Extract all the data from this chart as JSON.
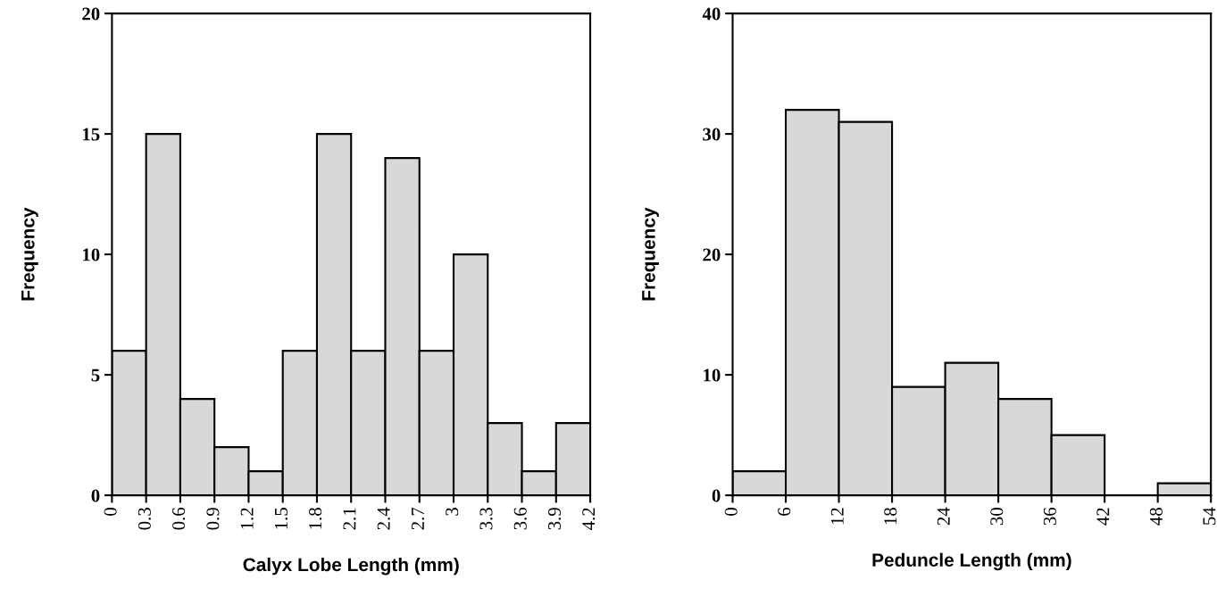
{
  "chart_data": [
    {
      "type": "histogram",
      "xlabel": "Calyx Lobe Length (mm)",
      "ylabel": "Frequency",
      "bins": [
        0,
        0.3,
        0.6,
        0.9,
        1.2,
        1.5,
        1.8,
        2.1,
        2.4,
        2.7,
        3,
        3.3,
        3.6,
        3.9,
        4.2
      ],
      "values": [
        6,
        15,
        4,
        2,
        1,
        6,
        15,
        6,
        14,
        6,
        10,
        3,
        1,
        3
      ],
      "color": "#d8d8d8",
      "xlim": [
        0,
        4.2
      ],
      "xticks": [
        0,
        0.3,
        0.6,
        0.9,
        1.2,
        1.5,
        1.8,
        2.1,
        2.4,
        2.7,
        3,
        3.3,
        3.6,
        3.9,
        4.2
      ],
      "ylim": [
        0,
        20
      ],
      "yticks": [
        0,
        5,
        10,
        15,
        20
      ],
      "grid": false
    },
    {
      "type": "histogram",
      "xlabel": "Peduncle Length (mm)",
      "ylabel": "Frequency",
      "bins": [
        0,
        6,
        12,
        18,
        24,
        30,
        36,
        42,
        48,
        54
      ],
      "values": [
        2,
        32,
        31,
        9,
        11,
        8,
        5,
        0,
        1
      ],
      "color": "#d8d8d8",
      "xlim": [
        0,
        54
      ],
      "xticks": [
        0,
        6,
        12,
        18,
        24,
        30,
        36,
        42,
        48,
        54
      ],
      "ylim": [
        0,
        40
      ],
      "yticks": [
        0,
        10,
        20,
        30,
        40
      ],
      "grid": false
    }
  ]
}
